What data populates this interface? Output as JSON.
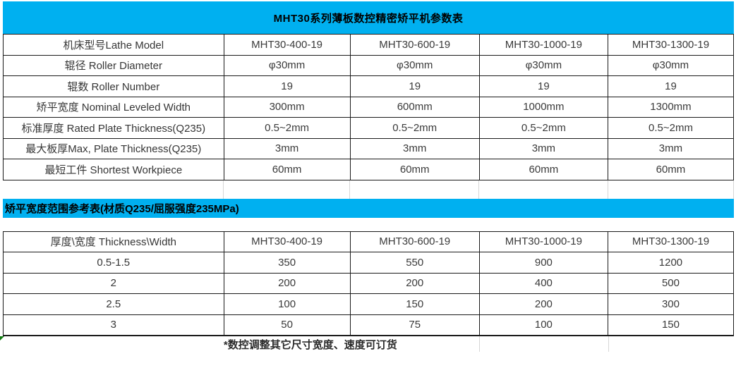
{
  "title": "MHT30系列薄板数控精密矫平机参数表",
  "subtitle": "矫平宽度范围参考表(材质Q235/屈服强度235MPa)",
  "footnote": "*数控调整其它尺寸宽度、速度可订货",
  "colors": {
    "accent_cyan": "#00B0F0",
    "table_border": "#1A1A1A",
    "cell_text": "#3A3A3A",
    "faint_gridline": "#D6D6D6",
    "corner_indicator_green": "#107C10"
  },
  "chart_data": [
    {
      "type": "table",
      "title": "MHT30系列薄板数控精密矫平机参数表",
      "rows": [
        [
          "机床型号Lathe Model",
          "MHT30-400-19",
          "MHT30-600-19",
          "MHT30-1000-19",
          "MHT30-1300-19"
        ],
        [
          "辊径 Roller Diameter",
          "φ30mm",
          "φ30mm",
          "φ30mm",
          "φ30mm"
        ],
        [
          "辊数 Roller Number",
          "19",
          "19",
          "19",
          "19"
        ],
        [
          "矫平宽度 Nominal Leveled Width",
          "300mm",
          "600mm",
          "1000mm",
          "1300mm"
        ],
        [
          "标准厚度 Rated Plate Thickness(Q235)",
          "0.5~2mm",
          "0.5~2mm",
          "0.5~2mm",
          "0.5~2mm"
        ],
        [
          "最大板厚Max, Plate Thickness(Q235)",
          "3mm",
          "3mm",
          "3mm",
          "3mm"
        ],
        [
          "最短工件 Shortest Workpiece",
          "60mm",
          "60mm",
          "60mm",
          "60mm"
        ]
      ]
    },
    {
      "type": "table",
      "title": "矫平宽度范围参考表(材质Q235/屈服强度235MPa)",
      "rows": [
        [
          "厚度\\宽度 Thickness\\Width",
          "MHT30-400-19",
          "MHT30-600-19",
          "MHT30-1000-19",
          "MHT30-1300-19"
        ],
        [
          "0.5-1.5",
          "350",
          "550",
          "900",
          "1200"
        ],
        [
          "2",
          "200",
          "200",
          "400",
          "500"
        ],
        [
          "2.5",
          "100",
          "150",
          "200",
          "300"
        ],
        [
          "3",
          "50",
          "75",
          "100",
          "150"
        ]
      ]
    }
  ],
  "table1": {
    "rows": [
      {
        "label": "机床型号Lathe Model",
        "values": [
          "MHT30-400-19",
          "MHT30-600-19",
          "MHT30-1000-19",
          "MHT30-1300-19"
        ]
      },
      {
        "label": "辊径 Roller Diameter",
        "values": [
          "φ30mm",
          "φ30mm",
          "φ30mm",
          "φ30mm"
        ]
      },
      {
        "label": "辊数 Roller Number",
        "values": [
          "19",
          "19",
          "19",
          "19"
        ]
      },
      {
        "label": "矫平宽度 Nominal Leveled Width",
        "values": [
          "300mm",
          "600mm",
          "1000mm",
          "1300mm"
        ]
      },
      {
        "label": "标准厚度 Rated Plate Thickness(Q235)",
        "values": [
          "0.5~2mm",
          "0.5~2mm",
          "0.5~2mm",
          "0.5~2mm"
        ]
      },
      {
        "label": "最大板厚Max, Plate Thickness(Q235)",
        "values": [
          "3mm",
          "3mm",
          "3mm",
          "3mm"
        ]
      },
      {
        "label": "最短工件 Shortest Workpiece",
        "values": [
          "60mm",
          "60mm",
          "60mm",
          "60mm"
        ]
      }
    ]
  },
  "table2": {
    "rows": [
      {
        "label": "厚度\\宽度 Thickness\\Width",
        "values": [
          "MHT30-400-19",
          "MHT30-600-19",
          "MHT30-1000-19",
          "MHT30-1300-19"
        ]
      },
      {
        "label": "0.5-1.5",
        "values": [
          "350",
          "550",
          "900",
          "1200"
        ]
      },
      {
        "label": "2",
        "values": [
          "200",
          "200",
          "400",
          "500"
        ]
      },
      {
        "label": "2.5",
        "values": [
          "100",
          "150",
          "200",
          "300"
        ]
      },
      {
        "label": "3",
        "values": [
          "50",
          "75",
          "100",
          "150"
        ]
      }
    ]
  }
}
